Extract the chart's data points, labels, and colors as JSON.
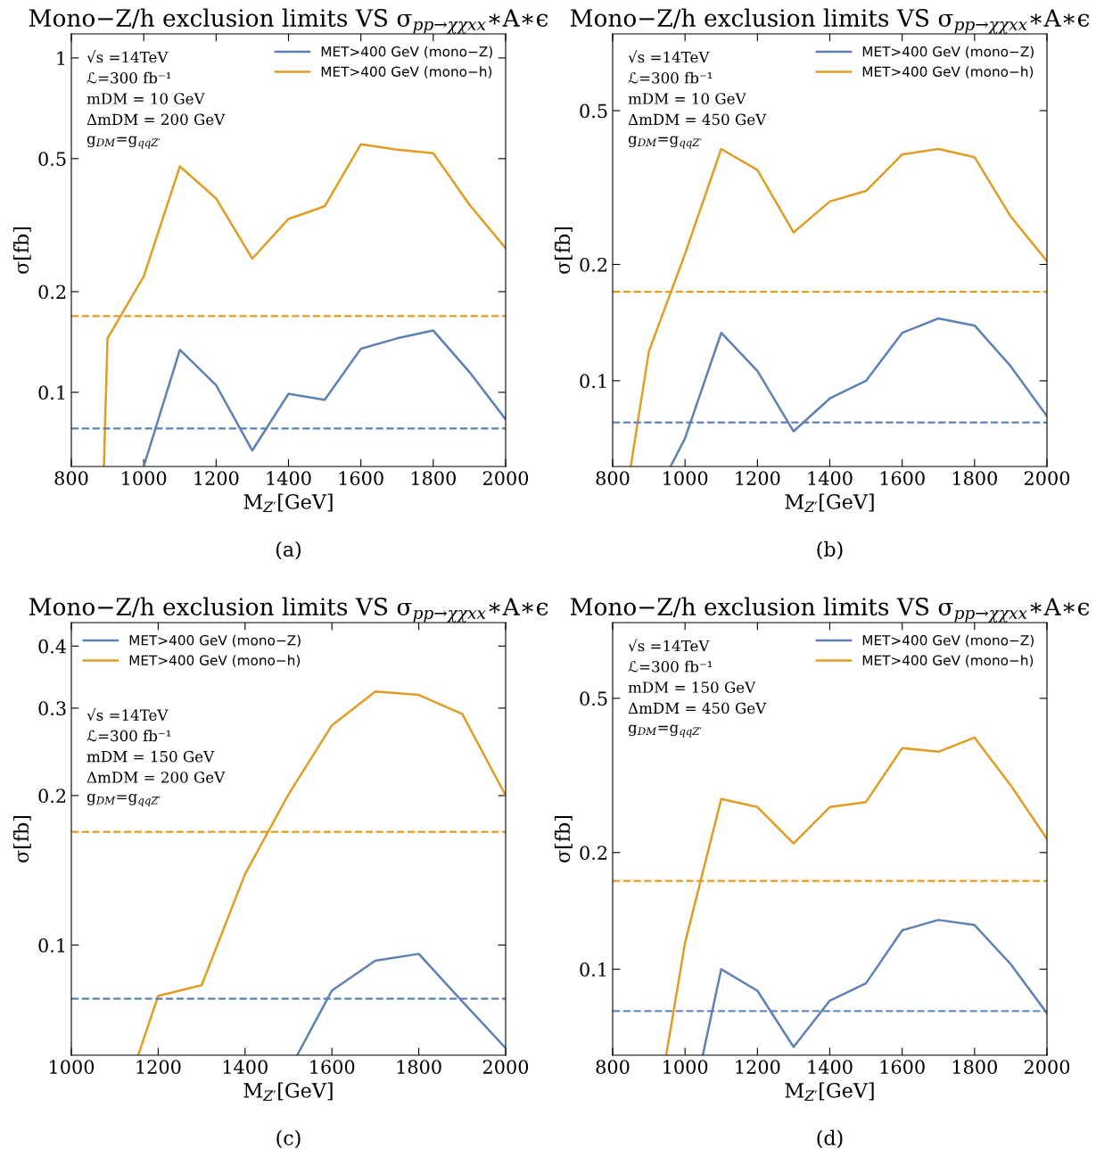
{
  "chart_data": [
    {
      "type": "line",
      "title": "Mono−Z/h exclusion limits VS σ$_{pp→χχxx}$∗A∗ϵ",
      "xlabel": "M$_{Z′}$[GeV]",
      "ylabel": "σ[fb]",
      "log": "y",
      "xlim": [
        800,
        2000
      ],
      "ylim": [
        0.06,
        1.18
      ],
      "xticks": [
        800,
        1000,
        1200,
        1400,
        1600,
        1800,
        2000
      ],
      "yticks": [
        0.1,
        0.2,
        0.5,
        1
      ],
      "grid": false,
      "legend": "top right",
      "line_style": "solid",
      "marker": "none",
      "series": [
        {
          "name": "MET>400 GeV (mono−Z)",
          "color": "#5e81b5",
          "x": [
            1000,
            1100,
            1200,
            1300,
            1400,
            1500,
            1600,
            1700,
            1800,
            1900,
            2000
          ],
          "values": [
            0.06,
            0.134,
            0.105,
            0.067,
            0.099,
            0.095,
            0.135,
            0.145,
            0.153,
            0.115,
            0.083
          ]
        },
        {
          "name": "MET>400 GeV (mono−h)",
          "color": "#e19c24",
          "x": [
            890,
            900,
            1000,
            1100,
            1200,
            1300,
            1400,
            1500,
            1600,
            1700,
            1800,
            1900,
            2000
          ],
          "values": [
            0.06,
            0.145,
            0.222,
            0.474,
            0.38,
            0.251,
            0.33,
            0.36,
            0.552,
            0.532,
            0.519,
            0.364,
            0.27
          ]
        }
      ],
      "ref_lines": [
        {
          "axis": "y",
          "value": 0.078,
          "color": "#5e81b5",
          "line_style": "dashed"
        },
        {
          "axis": "y",
          "value": 0.169,
          "color": "#e19c24",
          "line_style": "dashed"
        }
      ],
      "annotations": [
        "√s =14TeV",
        "ℒ=300 fb⁻¹",
        "mDM = 10 GeV",
        "ΔmDM = 200 GeV",
        "g$_{DM}$=g$_{qqZ′}$",
        "(a)"
      ]
    },
    {
      "type": "line",
      "title": "Mono−Z/h exclusion limits VS σ$_{pp→χχxx}$∗A∗ϵ",
      "xlabel": "M$_{Z′}$[GeV]",
      "ylabel": "σ[fb]",
      "log": "y",
      "xlim": [
        800,
        2000
      ],
      "ylim": [
        0.06,
        0.79
      ],
      "xticks": [
        800,
        1000,
        1200,
        1400,
        1600,
        1800,
        2000
      ],
      "yticks": [
        0.1,
        0.2,
        0.5
      ],
      "grid": false,
      "legend": "top right",
      "line_style": "solid",
      "marker": "none",
      "series": [
        {
          "name": "MET>400 GeV (mono−Z)",
          "color": "#5e81b5",
          "x": [
            960,
            1000,
            1100,
            1200,
            1300,
            1400,
            1500,
            1600,
            1700,
            1800,
            1900,
            2000
          ],
          "values": [
            0.06,
            0.071,
            0.133,
            0.106,
            0.074,
            0.09,
            0.1,
            0.133,
            0.145,
            0.139,
            0.109,
            0.081
          ]
        },
        {
          "name": "MET>400 GeV (mono−h)",
          "color": "#e19c24",
          "x": [
            850,
            900,
            1000,
            1100,
            1200,
            1300,
            1400,
            1500,
            1600,
            1700,
            1800,
            1900,
            2000
          ],
          "values": [
            0.06,
            0.119,
            0.213,
            0.398,
            0.351,
            0.242,
            0.291,
            0.31,
            0.385,
            0.398,
            0.379,
            0.266,
            0.204
          ]
        }
      ],
      "ref_lines": [
        {
          "axis": "y",
          "value": 0.078,
          "color": "#5e81b5",
          "line_style": "dashed"
        },
        {
          "axis": "y",
          "value": 0.17,
          "color": "#e19c24",
          "line_style": "dashed"
        }
      ],
      "annotations": [
        "√s =14TeV",
        "ℒ=300 fb⁻¹",
        "mDM = 10 GeV",
        "ΔmDM = 450 GeV",
        "g$_{DM}$=g$_{qqZ′}$",
        "(b)"
      ]
    },
    {
      "type": "line",
      "title": "Mono−Z/h exclusion limits VS σ$_{pp→χχxx}$∗A∗ϵ",
      "xlabel": "M$_{Z′}$[GeV]",
      "ylabel": "σ[fb]",
      "log": "y",
      "xlim": [
        1000,
        2000
      ],
      "ylim": [
        0.06,
        0.446
      ],
      "xticks": [
        1000,
        1200,
        1400,
        1600,
        1800,
        2000
      ],
      "yticks": [
        0.1,
        0.2,
        0.3,
        0.4
      ],
      "grid": false,
      "legend": "top left",
      "line_style": "solid",
      "marker": "none",
      "series": [
        {
          "name": "MET>400 GeV (mono−Z)",
          "color": "#5e81b5",
          "x": [
            1520,
            1600,
            1700,
            1800,
            1900,
            2000
          ],
          "values": [
            0.06,
            0.081,
            0.093,
            0.096,
            0.077,
            0.062
          ]
        },
        {
          "name": "MET>400 GeV (mono−h)",
          "color": "#e19c24",
          "x": [
            1154,
            1200,
            1300,
            1400,
            1500,
            1600,
            1700,
            1800,
            1900,
            2000
          ],
          "values": [
            0.06,
            0.079,
            0.083,
            0.139,
            0.201,
            0.277,
            0.324,
            0.319,
            0.292,
            0.2
          ]
        }
      ],
      "ref_lines": [
        {
          "axis": "y",
          "value": 0.078,
          "color": "#5e81b5",
          "line_style": "dashed"
        },
        {
          "axis": "y",
          "value": 0.169,
          "color": "#e19c24",
          "line_style": "dashed"
        }
      ],
      "annotations": [
        "√s =14TeV",
        "ℒ=300 fb⁻¹",
        "mDM = 150 GeV",
        "ΔmDM = 200 GeV",
        "g$_{DM}$=g$_{qqZ′}$",
        "(c)"
      ]
    },
    {
      "type": "line",
      "title": "Mono−Z/h exclusion limits VS σ$_{pp→χχxx}$∗A∗ϵ",
      "xlabel": "M$_{Z′}$[GeV]",
      "ylabel": "σ[fb]",
      "log": "y",
      "xlim": [
        800,
        2000
      ],
      "ylim": [
        0.06,
        0.784
      ],
      "xticks": [
        800,
        1000,
        1200,
        1400,
        1600,
        1800,
        2000
      ],
      "yticks": [
        0.1,
        0.2,
        0.5
      ],
      "grid": false,
      "legend": "top right",
      "line_style": "solid",
      "marker": "none",
      "series": [
        {
          "name": "MET>400 GeV (mono−Z)",
          "color": "#5e81b5",
          "x": [
            1049,
            1100,
            1200,
            1300,
            1400,
            1500,
            1600,
            1700,
            1800,
            1900,
            2000
          ],
          "values": [
            0.06,
            0.1,
            0.088,
            0.063,
            0.083,
            0.092,
            0.126,
            0.134,
            0.13,
            0.103,
            0.077
          ]
        },
        {
          "name": "MET>400 GeV (mono−h)",
          "color": "#e19c24",
          "x": [
            948,
            1000,
            1100,
            1200,
            1300,
            1400,
            1500,
            1600,
            1700,
            1800,
            1900,
            2000
          ],
          "values": [
            0.06,
            0.117,
            0.275,
            0.262,
            0.211,
            0.262,
            0.27,
            0.372,
            0.364,
            0.396,
            0.298,
            0.217
          ]
        }
      ],
      "ref_lines": [
        {
          "axis": "y",
          "value": 0.078,
          "color": "#5e81b5",
          "line_style": "dashed"
        },
        {
          "axis": "y",
          "value": 0.169,
          "color": "#e19c24",
          "line_style": "dashed"
        }
      ],
      "annotations": [
        "√s =14TeV",
        "ℒ=300 fb⁻¹",
        "mDM = 150 GeV",
        "ΔmDM = 450 GeV",
        "g$_{DM}$=g$_{qqZ′}$",
        "(d)"
      ]
    }
  ]
}
